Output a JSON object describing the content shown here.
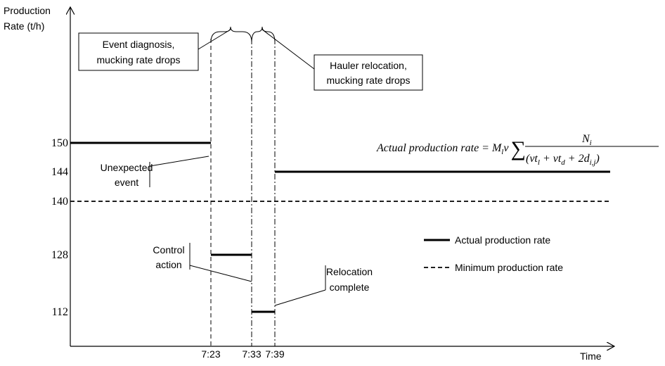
{
  "chart_data": {
    "type": "step",
    "y_label": [
      "Production",
      "Rate (t/h)"
    ],
    "x_label": "Time",
    "yticks": [
      150,
      144,
      140,
      128,
      112
    ],
    "xticks": [
      "7:23",
      "7:33",
      "7:39"
    ],
    "series": [
      {
        "name": "Actual production rate",
        "color": "#000000",
        "style": "solid",
        "values": [
          150,
          128,
          112,
          144
        ]
      },
      {
        "name": "Minimum production rate",
        "color": "#000000",
        "style": "dashed",
        "values": [
          140
        ]
      }
    ],
    "annotations": {
      "event_diagnosis": [
        "Event diagnosis,",
        "mucking rate drops"
      ],
      "hauler_relocation": [
        "Hauler relocation,",
        "mucking rate drops"
      ],
      "unexpected_event": [
        "Unexpected",
        "event"
      ],
      "control_action": [
        "Control",
        "action"
      ],
      "relocation_complete": [
        "Relocation",
        "complete"
      ]
    },
    "formula": [
      "Actual production rate = ",
      "M",
      "l",
      "v",
      "∑",
      "N",
      "i",
      "(vt",
      "l",
      " + vt",
      "d",
      " + 2d",
      "i,j",
      ")"
    ]
  }
}
